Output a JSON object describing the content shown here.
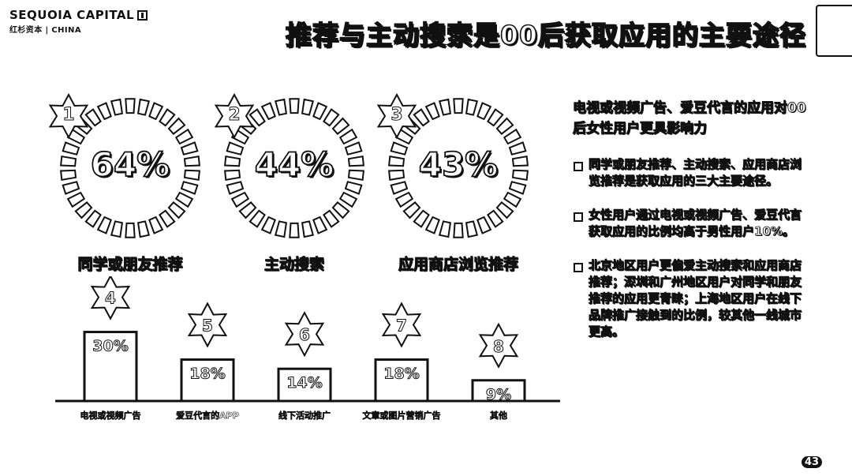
{
  "logo": {
    "name": "SEQUOIA CAPITAL",
    "sub": "红杉资本 | CHINA"
  },
  "title": "推荐与主动搜索是00后获取应用的主要途径",
  "page_number": "43",
  "rings": [
    {
      "rank": "1",
      "value": "64%",
      "label": "同学或朋友推荐"
    },
    {
      "rank": "2",
      "value": "44%",
      "label": "主动搜索"
    },
    {
      "rank": "3",
      "value": "43%",
      "label": "应用商店浏览推荐"
    }
  ],
  "chart_data": {
    "type": "bar",
    "categories": [
      "电视或视频广告",
      "爱豆代言的APP",
      "线下活动推广",
      "文章或图片营销广告",
      "其他"
    ],
    "ranks": [
      "4",
      "5",
      "6",
      "7",
      "8"
    ],
    "values": [
      30,
      18,
      14,
      18,
      9
    ],
    "value_labels": [
      "30%",
      "18%",
      "14%",
      "18%",
      "9%"
    ],
    "ylim": [
      0,
      35
    ]
  },
  "side": {
    "heading": "电视或视频广告、爱豆代言的应用对00后女性用户更具影响力",
    "bullets": [
      "同学或朋友推荐、主动搜索、应用商店浏览推荐是获取应用的三大主要途径。",
      "女性用户通过电视或视频广告、爱豆代言获取应用的比例均高于男性用户10%。",
      "北京地区用户更偏爱主动搜索和应用商店推荐；深圳和广州地区用户对同学和朋友推荐的应用更青睐；上海地区用户在线下品牌推广接触到的比例，较其他一线城市更高。"
    ]
  }
}
